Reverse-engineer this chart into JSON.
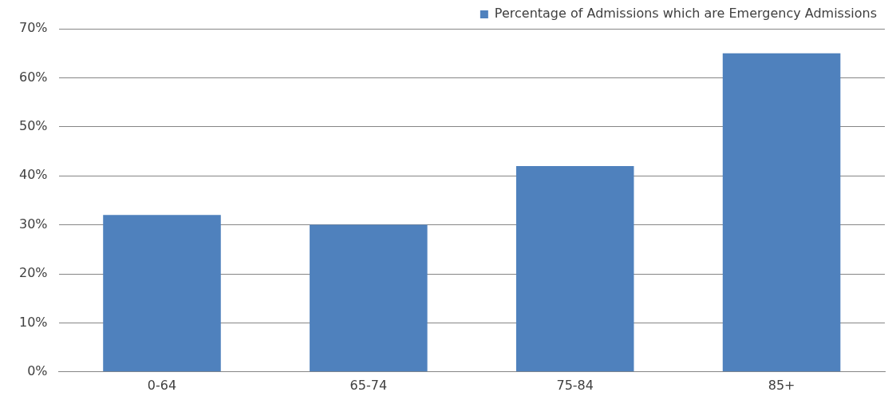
{
  "chart_data": {
    "type": "bar",
    "categories": [
      "0-64",
      "65-74",
      "75-84",
      "85+"
    ],
    "series": [
      {
        "name": "Percentage of Admissions which are Emergency Admissions",
        "color": "#4f81bd",
        "values": [
          32,
          30,
          42,
          65
        ]
      }
    ],
    "ylim": [
      0,
      70
    ],
    "yticks": [
      {
        "value": 0,
        "label": "0%"
      },
      {
        "value": 10,
        "label": "10%"
      },
      {
        "value": 20,
        "label": "20%"
      },
      {
        "value": 30,
        "label": "30%"
      },
      {
        "value": 40,
        "label": "40%"
      },
      {
        "value": 50,
        "label": "50%"
      },
      {
        "value": 60,
        "label": "60%"
      },
      {
        "value": 70,
        "label": "70%"
      }
    ],
    "grid": "y",
    "legend": "top right"
  }
}
